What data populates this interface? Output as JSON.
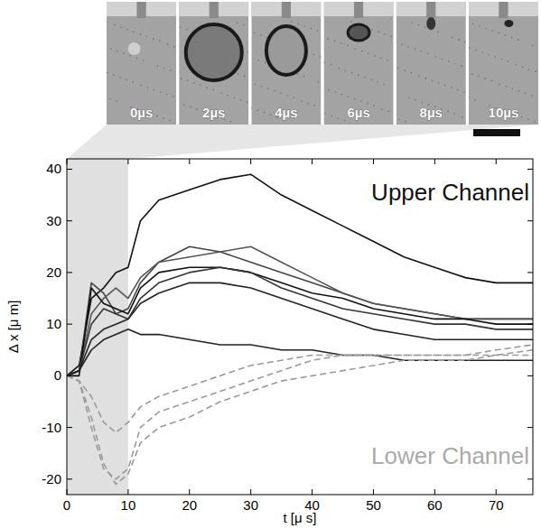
{
  "chart_data": {
    "type": "line",
    "x_label": "t [μ s]",
    "y_label": "Δ x [μ m]",
    "annotations": [
      "Upper Channel",
      "Lower Channel"
    ],
    "frames": [
      "0µs",
      "2µs",
      "4µs",
      "6µs",
      "8µs",
      "10µs"
    ],
    "shaded_x": [
      0,
      10
    ],
    "xlim": [
      0,
      76
    ],
    "xticks": [
      0,
      10,
      20,
      30,
      40,
      50,
      60,
      70
    ],
    "ylim": [
      -23,
      42
    ],
    "yticks": [
      -20,
      -10,
      0,
      10,
      20,
      30,
      40
    ],
    "x": [
      0,
      2,
      4,
      6,
      8,
      10,
      12,
      15,
      20,
      25,
      30,
      35,
      40,
      45,
      50,
      55,
      60,
      65,
      70,
      76
    ],
    "series": [
      {
        "color": "#111111",
        "line_style": "solid",
        "values": [
          0,
          2,
          15,
          17,
          20,
          21,
          30,
          34,
          36,
          38,
          39,
          35,
          32,
          29,
          26,
          23,
          21,
          19,
          18,
          18
        ]
      },
      {
        "color": "#444444",
        "line_style": "solid",
        "values": [
          0,
          1,
          18,
          16,
          12,
          13,
          18,
          22,
          25,
          24,
          22,
          20,
          18,
          16,
          14,
          13,
          12,
          11,
          11,
          11
        ]
      },
      {
        "color": "#555555",
        "line_style": "solid",
        "values": [
          0,
          1,
          12,
          15,
          17,
          15,
          19,
          22,
          23,
          24,
          25,
          22,
          19,
          16,
          14,
          13,
          12,
          11,
          11,
          11
        ]
      },
      {
        "color": "#111111",
        "line_style": "solid",
        "values": [
          0,
          0,
          17,
          14,
          13,
          12,
          17,
          20,
          21,
          21,
          20,
          18,
          16,
          15,
          13,
          12,
          11,
          11,
          10,
          10
        ]
      },
      {
        "color": "#333333",
        "line_style": "solid",
        "values": [
          0,
          1,
          10,
          13,
          12,
          11,
          15,
          18,
          20,
          21,
          20,
          17,
          15,
          13,
          12,
          11,
          10,
          10,
          9,
          9
        ]
      },
      {
        "color": "#222222",
        "line_style": "solid",
        "values": [
          0,
          1,
          7,
          9,
          10,
          11,
          14,
          16,
          18,
          18,
          17,
          15,
          13,
          11,
          9,
          8,
          7,
          7,
          7,
          7
        ]
      },
      {
        "color": "#222222",
        "line_style": "solid",
        "values": [
          0,
          1,
          5,
          7,
          8,
          9,
          8,
          8,
          7,
          6,
          6,
          5,
          5,
          4,
          4,
          3,
          3,
          3,
          3,
          3
        ]
      },
      {
        "color": "#9a9a9a",
        "line_style": "dashed",
        "values": [
          0,
          -1,
          -8,
          -17,
          -21,
          -19,
          -13,
          -10,
          -8,
          -5,
          -3,
          -1,
          0,
          1,
          2,
          3,
          3,
          3,
          4,
          5
        ]
      },
      {
        "color": "#9a9a9a",
        "line_style": "dashed",
        "values": [
          0,
          -1,
          -10,
          -18,
          -20,
          -18,
          -10,
          -7,
          -5,
          -3,
          -1,
          1,
          3,
          4,
          4,
          4,
          4,
          4,
          4,
          4
        ]
      },
      {
        "color": "#9a9a9a",
        "line_style": "dashed",
        "values": [
          0,
          -1,
          -4,
          -9,
          -11,
          -9,
          -6,
          -4,
          -2,
          0,
          2,
          3,
          4,
          4,
          4,
          4,
          4,
          4,
          5,
          6
        ]
      }
    ]
  }
}
